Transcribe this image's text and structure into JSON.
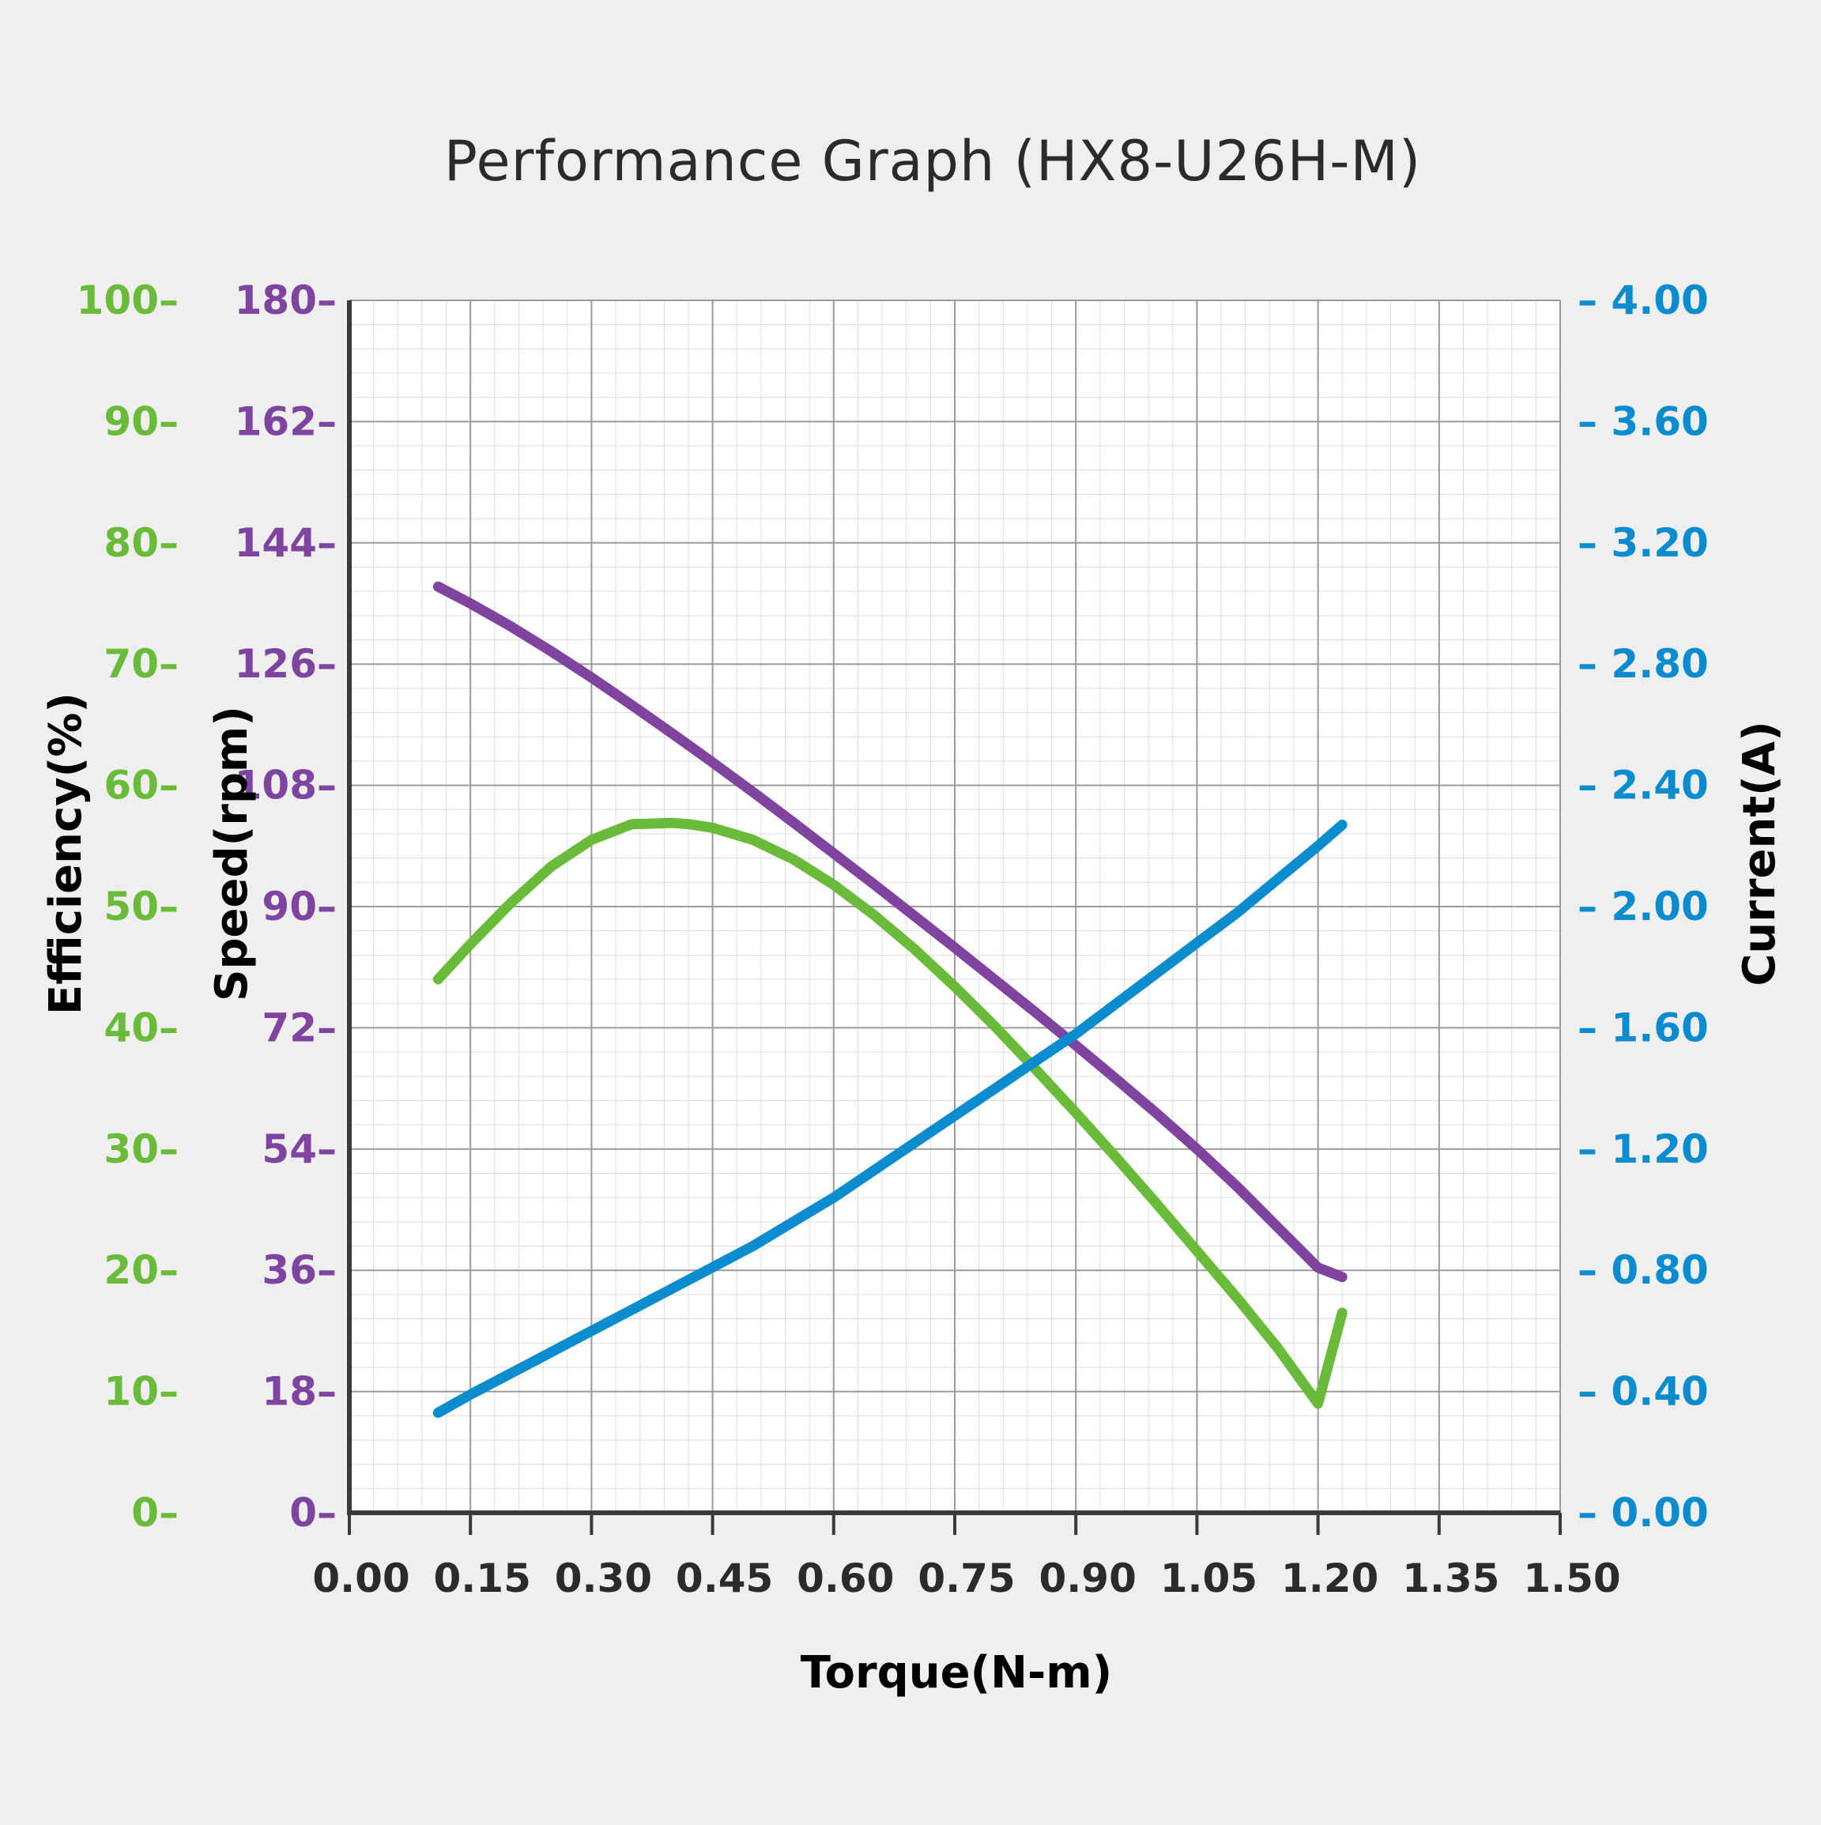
{
  "chart_data": {
    "type": "line",
    "title": "Performance Graph  (HX8-U26H-M)",
    "xlabel": "Torque(N-m)",
    "x_ticks": [
      "0.00",
      "0.15",
      "0.30",
      "0.45",
      "0.60",
      "0.75",
      "0.90",
      "1.05",
      "1.20",
      "1.35",
      "1.50"
    ],
    "xlim": [
      0,
      1.5
    ],
    "grid": true,
    "colors": {
      "efficiency": "#6bbb3b",
      "speed": "#7f44a0",
      "current": "#0a8ccf",
      "axis": "#3a3a3a",
      "tick_text": "#2b2b2b"
    },
    "axes": {
      "efficiency": {
        "label": "Efficiency(%)",
        "range": [
          0,
          100
        ],
        "ticks": [
          "0",
          "10",
          "20",
          "30",
          "40",
          "50",
          "60",
          "70",
          "80",
          "90",
          "100"
        ]
      },
      "speed": {
        "label": "Speed(rpm)",
        "range": [
          0,
          180
        ],
        "ticks": [
          "0",
          "18",
          "36",
          "54",
          "72",
          "90",
          "108",
          "126",
          "144",
          "162",
          "180"
        ]
      },
      "current": {
        "label": "Current(A)",
        "range": [
          0,
          4
        ],
        "ticks": [
          "0.00",
          "0.40",
          "0.80",
          "1.20",
          "1.60",
          "2.00",
          "2.40",
          "2.80",
          "3.20",
          "3.60",
          "4.00"
        ]
      }
    },
    "series": [
      {
        "axis": "speed",
        "x": [
          0.11,
          0.15,
          0.2,
          0.25,
          0.3,
          0.35,
          0.4,
          0.45,
          0.5,
          0.55,
          0.6,
          0.65,
          0.7,
          0.75,
          0.8,
          0.85,
          0.9,
          0.95,
          1.0,
          1.05,
          1.1,
          1.15,
          1.2,
          1.23
        ],
        "y": [
          137.5,
          135.0,
          131.6,
          127.9,
          124.0,
          119.9,
          115.7,
          111.4,
          107.0,
          102.5,
          97.9,
          93.3,
          88.6,
          83.9,
          79.1,
          74.3,
          69.4,
          64.4,
          59.3,
          54.0,
          48.4,
          42.4,
          36.4,
          35.0
        ]
      },
      {
        "axis": "efficiency",
        "x": [
          0.11,
          0.15,
          0.2,
          0.25,
          0.3,
          0.35,
          0.4,
          0.42,
          0.45,
          0.5,
          0.55,
          0.6,
          0.65,
          0.7,
          0.75,
          0.8,
          0.85,
          0.9,
          0.95,
          1.0,
          1.05,
          1.1,
          1.15,
          1.2,
          1.23
        ],
        "y": [
          44.0,
          46.9,
          50.3,
          53.3,
          55.5,
          56.8,
          56.9,
          56.8,
          56.5,
          55.5,
          53.9,
          51.8,
          49.3,
          46.5,
          43.4,
          40.1,
          36.6,
          33.0,
          29.3,
          25.5,
          21.6,
          17.7,
          13.6,
          9.0,
          16.5
        ]
      },
      {
        "axis": "current",
        "x": [
          0.11,
          0.15,
          0.2,
          0.25,
          0.3,
          0.35,
          0.4,
          0.45,
          0.5,
          0.55,
          0.6,
          0.65,
          0.7,
          0.75,
          0.8,
          0.85,
          0.9,
          0.95,
          1.0,
          1.05,
          1.1,
          1.15,
          1.2,
          1.23
        ],
        "y": [
          0.33,
          0.39,
          0.46,
          0.53,
          0.6,
          0.67,
          0.74,
          0.81,
          0.88,
          0.96,
          1.04,
          1.13,
          1.22,
          1.31,
          1.4,
          1.49,
          1.58,
          1.68,
          1.78,
          1.88,
          1.98,
          2.09,
          2.2,
          2.27
        ]
      }
    ]
  }
}
